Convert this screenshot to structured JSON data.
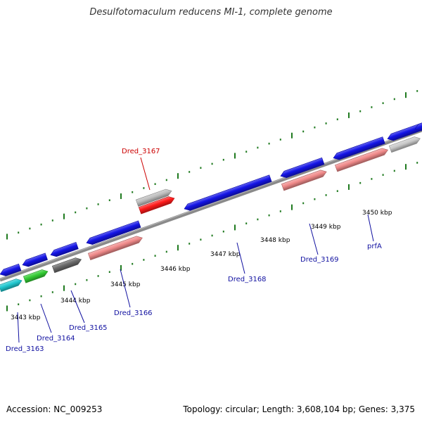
{
  "title": "Desulfotomaculum reducens MI-1, complete genome",
  "footer": {
    "accession": "Accession: NC_009253",
    "summary": "Topology: circular; Length: 3,608,104 bp; Genes: 3,375"
  },
  "colors": {
    "backbone": "#8a8a8a",
    "ticks": "#1f7a1f",
    "axis_label": "#000000",
    "gene_label": "#1010a0",
    "highlight_label": "#cc0000",
    "leader": "#1010a0"
  },
  "ruler": {
    "labels": [
      "3443 kbp",
      "3444 kbp",
      "3445 kbp",
      "3446 kbp",
      "3447 kbp",
      "3448 kbp",
      "3449 kbp",
      "3450 kbp"
    ]
  },
  "genes_forward": [
    {
      "color": "#1414e6"
    },
    {
      "color": "#1414e6"
    },
    {
      "color": "#1414e6"
    },
    {
      "color": "#1414e6"
    },
    {
      "color": "#1414e6"
    },
    {
      "color": "#1414e6"
    },
    {
      "color": "#1414e6"
    },
    {
      "color": "#1414e6"
    },
    {
      "color": "#1414e6"
    },
    {
      "color": "#bdbdbd"
    },
    {
      "color": "#ff1a1a"
    }
  ],
  "genes_reverse": [
    {
      "color": "#20c8d0"
    },
    {
      "color": "#33cc33"
    },
    {
      "color": "#6a6a6a"
    },
    {
      "color": "#f08a8a"
    },
    {
      "color": "#f08a8a"
    },
    {
      "color": "#f08a8a"
    },
    {
      "color": "#c8c8c8"
    }
  ],
  "gene_labels": [
    {
      "name": "Dred_3163",
      "highlight": false
    },
    {
      "name": "Dred_3164",
      "highlight": false
    },
    {
      "name": "Dred_3165",
      "highlight": false
    },
    {
      "name": "Dred_3166",
      "highlight": false
    },
    {
      "name": "Dred_3167",
      "highlight": true
    },
    {
      "name": "Dred_3168",
      "highlight": false
    },
    {
      "name": "Dred_3169",
      "highlight": false
    },
    {
      "name": "prfA",
      "highlight": false
    }
  ]
}
